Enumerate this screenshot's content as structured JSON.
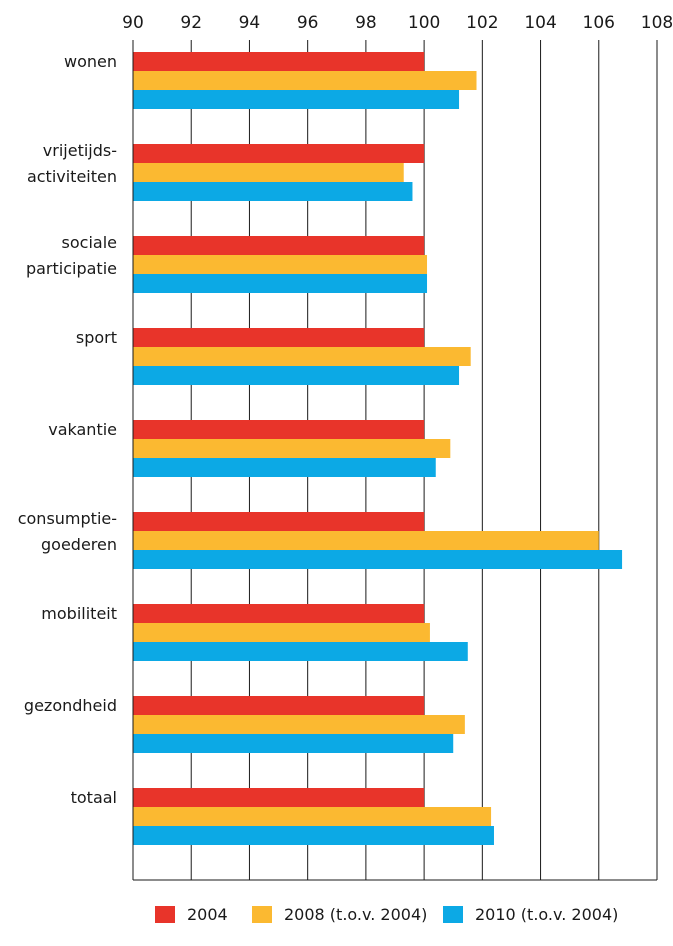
{
  "chart_data": {
    "type": "bar",
    "orientation": "horizontal",
    "categories": [
      [
        "wonen"
      ],
      [
        "vrijetijds-",
        "activiteiten"
      ],
      [
        "sociale",
        "participatie"
      ],
      [
        "sport"
      ],
      [
        "vakantie"
      ],
      [
        "consumptie-",
        "goederen"
      ],
      [
        "mobiliteit"
      ],
      [
        "gezondheid"
      ],
      [
        "totaal"
      ]
    ],
    "series": [
      {
        "name": "2004",
        "color": "#e8342a",
        "values": [
          100,
          100,
          100,
          100,
          100,
          100,
          100,
          100,
          100
        ]
      },
      {
        "name": "2008 (t.o.v. 2004)",
        "color": "#fbb931",
        "values": [
          101.8,
          99.3,
          100.1,
          101.6,
          100.9,
          106.0,
          100.2,
          101.4,
          102.3
        ]
      },
      {
        "name": "2010 (t.o.v. 2004)",
        "color": "#0ca9e5",
        "values": [
          101.2,
          99.6,
          100.1,
          101.2,
          100.4,
          106.8,
          101.5,
          101.0,
          102.4
        ]
      }
    ],
    "xlim": [
      90,
      108
    ],
    "xticks": [
      90,
      92,
      94,
      96,
      98,
      100,
      102,
      104,
      106,
      108
    ],
    "xaxis_position": "top",
    "grid": "vertical",
    "legend_position": "bottom",
    "title": "",
    "xlabel": "",
    "ylabel": ""
  }
}
